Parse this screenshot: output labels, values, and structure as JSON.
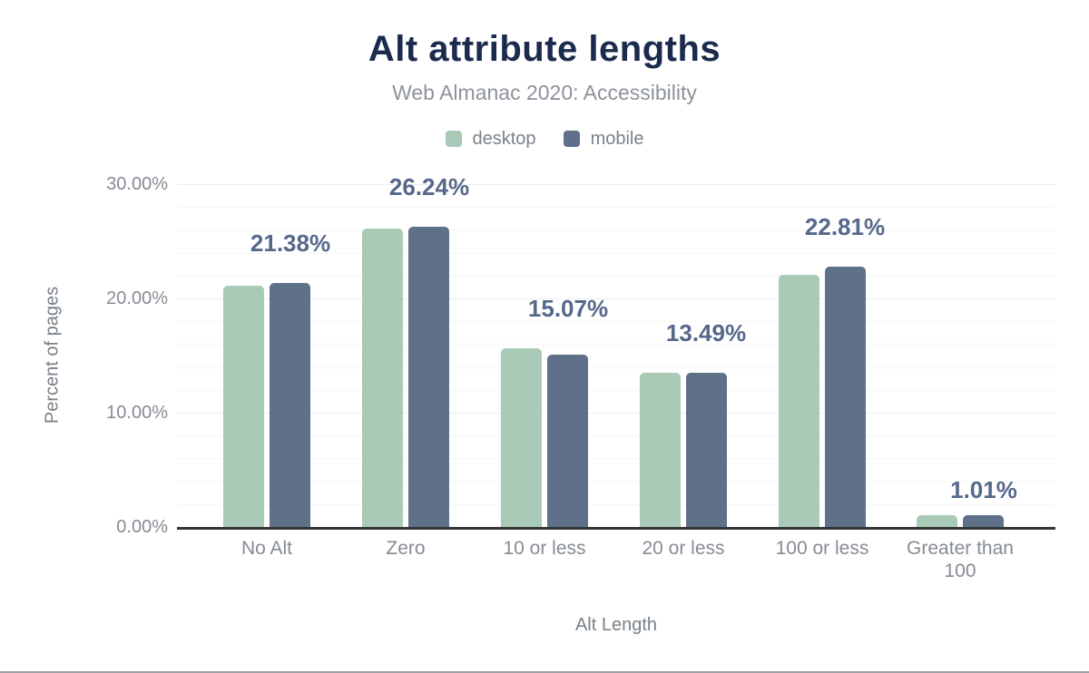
{
  "header": {
    "title": "Alt attribute lengths",
    "subtitle": "Web Almanac 2020: Accessibility"
  },
  "legend": [
    {
      "label": "desktop",
      "color": "#a8cab7"
    },
    {
      "label": "mobile",
      "color": "#5e7189"
    }
  ],
  "chart_data": {
    "type": "bar",
    "title": "Alt attribute lengths",
    "subtitle": "Web Almanac 2020: Accessibility",
    "categories": [
      "No Alt",
      "Zero",
      "10 or less",
      "20 or less",
      "100 or less",
      "Greater than 100"
    ],
    "series": [
      {
        "name": "desktop",
        "color": "#a8cab7",
        "values": [
          21.1,
          26.15,
          15.6,
          13.5,
          22.1,
          1.0
        ]
      },
      {
        "name": "mobile",
        "color": "#5e7189",
        "values": [
          21.38,
          26.24,
          15.07,
          13.49,
          22.81,
          1.01
        ]
      }
    ],
    "data_labels": [
      "21.38%",
      "26.24%",
      "15.07%",
      "13.49%",
      "22.81%",
      "1.01%"
    ],
    "data_labels_series": "mobile",
    "xlabel": "Alt Length",
    "ylabel": "Percent of pages",
    "ylim": [
      0,
      30
    ],
    "yticks": [
      "0.00%",
      "10.00%",
      "20.00%",
      "30.00%"
    ],
    "grid": "horizontal, minor every 2%, major every 10%",
    "legend_position": "top"
  },
  "colors": {
    "title": "#1b2b4d",
    "subtitle": "#8d929c",
    "value_label": "#56688a",
    "axis_text": "#868b94",
    "axis_line": "#333539",
    "gridline_major": "#ececee",
    "gridline_minor": "#f6f6f7"
  }
}
